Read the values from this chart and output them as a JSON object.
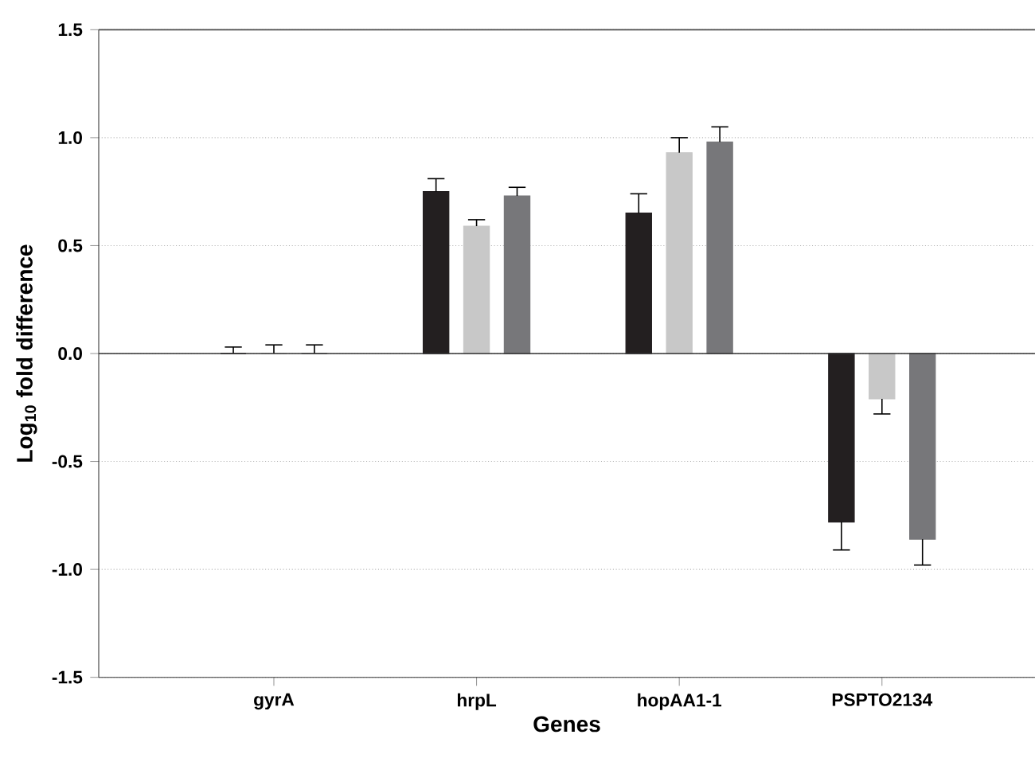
{
  "chart_data": {
    "type": "bar",
    "xlabel": "Genes",
    "ylabel": "Log$_{10}$ fold difference",
    "categories": [
      "gyrA",
      "hrpL",
      "hopAA1-1",
      "PSPTO2134"
    ],
    "series": [
      {
        "color": "#231f20",
        "values": [
          0,
          0.75,
          0.65,
          -0.78
        ],
        "errors": [
          0.03,
          0.06,
          0.09,
          0.13
        ]
      },
      {
        "color": "#c8c8c8",
        "values": [
          0,
          0.59,
          0.93,
          -0.21
        ],
        "errors": [
          0.04,
          0.03,
          0.07,
          0.07
        ]
      },
      {
        "color": "#77777a",
        "values": [
          0,
          0.73,
          0.98,
          -0.86
        ],
        "errors": [
          0.04,
          0.04,
          0.07,
          0.12
        ]
      }
    ],
    "ylim": [
      -1.5,
      1.5
    ],
    "yticks": [
      {
        "value": -1.5,
        "label": "-1.5"
      },
      {
        "value": -1.0,
        "label": "-1.0"
      },
      {
        "value": -0.5,
        "label": "-0.5"
      },
      {
        "value": 0,
        "label": "0.0"
      },
      {
        "value": 0.5,
        "label": "0.5"
      },
      {
        "value": 1.0,
        "label": "1.0"
      },
      {
        "value": 1.5,
        "label": "1.5"
      }
    ],
    "grid": "y"
  }
}
